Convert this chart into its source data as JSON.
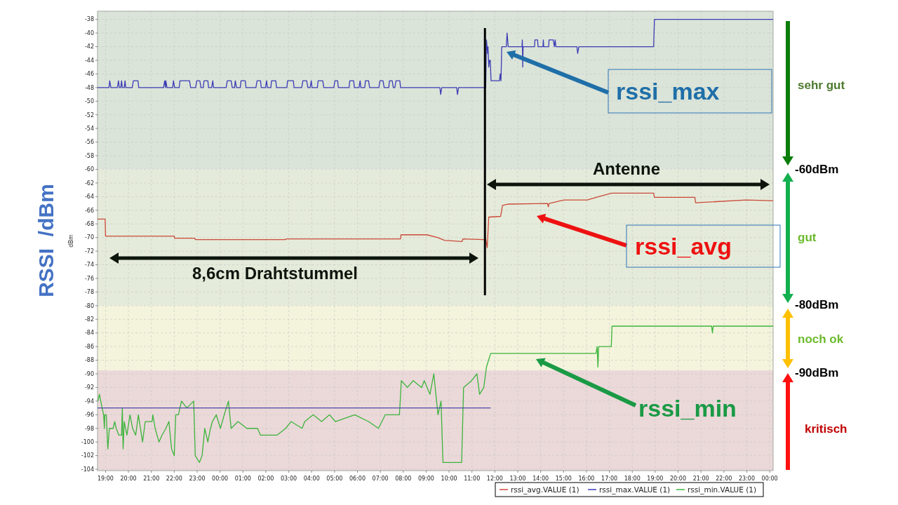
{
  "chart_data": {
    "type": "line",
    "ylabel": "dBm",
    "xlim": [
      "2000-01-01T18:39",
      "2000-01-03T00:09"
    ],
    "ylim": [
      -104.2,
      -36.8
    ],
    "xticks": [
      {
        "value": "2000-01-01T19:00",
        "label": "19:00"
      },
      {
        "value": "2000-01-01T20:00",
        "label": "20:00"
      },
      {
        "value": "2000-01-01T21:00",
        "label": "21:00"
      },
      {
        "value": "2000-01-01T22:00",
        "label": "22:00"
      },
      {
        "value": "2000-01-01T23:00",
        "label": "23:00"
      },
      {
        "value": "2000-01-02T00:00",
        "label": "00:00"
      },
      {
        "value": "2000-01-02T01:00",
        "label": "01:00"
      },
      {
        "value": "2000-01-02T02:00",
        "label": "02:00"
      },
      {
        "value": "2000-01-02T03:00",
        "label": "03:00"
      },
      {
        "value": "2000-01-02T04:00",
        "label": "04:00"
      },
      {
        "value": "2000-01-02T05:00",
        "label": "05:00"
      },
      {
        "value": "2000-01-02T06:00",
        "label": "06:00"
      },
      {
        "value": "2000-01-02T07:00",
        "label": "07:00"
      },
      {
        "value": "2000-01-02T08:00",
        "label": "08:00"
      },
      {
        "value": "2000-01-02T09:00",
        "label": "09:00"
      },
      {
        "value": "2000-01-02T10:00",
        "label": "10:00"
      },
      {
        "value": "2000-01-02T11:00",
        "label": "11:00"
      },
      {
        "value": "2000-01-02T12:00",
        "label": "12:00"
      },
      {
        "value": "2000-01-02T13:00",
        "label": "13:00"
      },
      {
        "value": "2000-01-02T14:00",
        "label": "14:00"
      },
      {
        "value": "2000-01-02T15:00",
        "label": "15:00"
      },
      {
        "value": "2000-01-02T16:00",
        "label": "16:00"
      },
      {
        "value": "2000-01-02T17:00",
        "label": "17:00"
      },
      {
        "value": "2000-01-02T18:00",
        "label": "18:00"
      },
      {
        "value": "2000-01-02T19:00",
        "label": "19:00"
      },
      {
        "value": "2000-01-02T20:00",
        "label": "20:00"
      },
      {
        "value": "2000-01-02T21:00",
        "label": "21:00"
      },
      {
        "value": "2000-01-02T22:00",
        "label": "22:00"
      },
      {
        "value": "2000-01-02T23:00",
        "label": "23:00"
      },
      {
        "value": "2000-01-03T00:00",
        "label": "00:00"
      }
    ],
    "yticks": [
      -38,
      -40,
      -42,
      -44,
      -46,
      -48,
      -50,
      -52,
      -54,
      -56,
      -58,
      -60,
      -62,
      -64,
      -66,
      -68,
      -70,
      -72,
      -74,
      -76,
      -78,
      -80,
      -82,
      -84,
      -86,
      -88,
      -90,
      -92,
      -94,
      -96,
      -98,
      -100,
      -102,
      -104
    ],
    "grid": true,
    "legend": "bottom right",
    "bands": [
      {
        "axis": "y",
        "from": -60,
        "to": -36.8,
        "label": "sehr gut",
        "color": "#dbe4d9"
      },
      {
        "axis": "y",
        "from": -80,
        "to": -60,
        "label": "gut",
        "color": "#e5ebda"
      },
      {
        "axis": "y",
        "from": -89.5,
        "to": -80,
        "label": "noch ok",
        "color": "#f4f4dc"
      },
      {
        "axis": "y",
        "from": -104.2,
        "to": -89.5,
        "label": "kritisch",
        "color": "#ebd8d9"
      }
    ],
    "ref_lines": [
      {
        "axis": "x",
        "value": "2000-01-02T11:34",
        "color": "#000000"
      }
    ],
    "annotations": [
      "RSSI  /dBm",
      "8,6cm Drahtstummel",
      "Antenne",
      "rssi_max",
      "rssi_avg",
      "rssi_min",
      "-60dBm",
      "-80dBm",
      "-90dBm"
    ],
    "series": [
      {
        "name": "rssi_avg.VALUE (1)",
        "color": "#cc4a3a",
        "x": [
          "2000-01-01T18:39",
          "2000-01-01T18:59",
          "2000-01-01T19:00",
          "2000-01-01T22:00",
          "2000-01-01T22:01",
          "2000-01-01T22:54",
          "2000-01-01T22:55",
          "2000-01-02T02:52",
          "2000-01-02T02:53",
          "2000-01-02T07:53",
          "2000-01-02T07:54",
          "2000-01-02T09:02",
          "2000-01-02T09:30",
          "2000-01-02T09:48",
          "2000-01-02T10:34",
          "2000-01-02T10:36",
          "2000-01-02T11:31",
          "2000-01-02T11:36",
          "2000-01-02T11:40",
          "2000-01-02T11:44",
          "2000-01-02T12:15",
          "2000-01-02T12:20",
          "2000-01-02T12:34",
          "2000-01-02T14:18",
          "2000-01-02T14:20",
          "2000-01-02T14:22",
          "2000-01-02T15:01",
          "2000-01-02T16:02",
          "2000-01-02T16:32",
          "2000-01-02T17:06",
          "2000-01-02T18:56",
          "2000-01-02T18:58",
          "2000-01-02T20:44",
          "2000-01-02T20:46",
          "2000-01-02T22:58",
          "2000-01-03T00:09"
        ],
        "values": [
          -67.3,
          -67.3,
          -69.8,
          -69.8,
          -70.1,
          -70.1,
          -70.3,
          -70.3,
          -70.2,
          -70.2,
          -69.6,
          -69.6,
          -70.0,
          -70.4,
          -70.6,
          -70.2,
          -70.3,
          -70.2,
          -71.5,
          -67.0,
          -66.9,
          -65.3,
          -65.1,
          -65.0,
          -65.5,
          -65.0,
          -64.5,
          -64.5,
          -64.0,
          -63.5,
          -63.5,
          -64.1,
          -64.1,
          -64.9,
          -64.5,
          -64.6
        ]
      },
      {
        "name": "rssi_max.VALUE (1)",
        "color": "#3c3cb4",
        "x": [
          "2000-01-01T18:39",
          "2000-01-01T19:09",
          "2000-01-01T19:11",
          "2000-01-01T19:14",
          "2000-01-01T19:31",
          "2000-01-01T19:34",
          "2000-01-01T19:36",
          "2000-01-01T19:40",
          "2000-01-01T19:42",
          "2000-01-01T19:44",
          "2000-01-01T19:49",
          "2000-01-01T19:51",
          "2000-01-01T19:53",
          "2000-01-01T20:10",
          "2000-01-01T20:13",
          "2000-01-01T20:25",
          "2000-01-01T20:27",
          "2000-01-01T21:32",
          "2000-01-01T21:35",
          "2000-01-01T21:37",
          "2000-01-01T21:38",
          "2000-01-01T21:41",
          "2000-01-01T21:56",
          "2000-01-01T21:58",
          "2000-01-01T22:01",
          "2000-01-01T22:13",
          "2000-01-01T22:15",
          "2000-01-01T22:40",
          "2000-01-01T22:43",
          "2000-01-01T22:56",
          "2000-01-01T22:59",
          "2000-01-01T23:07",
          "2000-01-01T23:10",
          "2000-01-01T23:16",
          "2000-01-01T23:18",
          "2000-01-01T23:28",
          "2000-01-01T23:30",
          "2000-01-01T23:38",
          "2000-01-01T23:41",
          "2000-01-01T23:43",
          "2000-01-02T00:16",
          "2000-01-02T00:19",
          "2000-01-02T00:29",
          "2000-01-02T00:32",
          "2000-01-02T00:38",
          "2000-01-02T00:40",
          "2000-01-02T00:43",
          "2000-01-02T00:53",
          "2000-01-02T00:55",
          "2000-01-02T01:06",
          "2000-01-02T01:08",
          "2000-01-02T01:34",
          "2000-01-02T01:37",
          "2000-01-02T01:46",
          "2000-01-02T01:48",
          "2000-01-02T01:59",
          "2000-01-02T02:02",
          "2000-01-02T02:04",
          "2000-01-02T02:13",
          "2000-01-02T02:15",
          "2000-01-02T02:26",
          "2000-01-02T02:28",
          "2000-01-02T02:55",
          "2000-01-02T02:57",
          "2000-01-02T03:12",
          "2000-01-02T03:14",
          "2000-01-02T03:34",
          "2000-01-02T03:37",
          "2000-01-02T03:47",
          "2000-01-02T03:50",
          "2000-01-02T03:56",
          "2000-01-02T03:59",
          "2000-01-02T04:01",
          "2000-01-02T04:15",
          "2000-01-02T04:17",
          "2000-01-02T04:29",
          "2000-01-02T04:32",
          "2000-01-02T04:58",
          "2000-01-02T05:01",
          "2000-01-02T05:08",
          "2000-01-02T05:10",
          "2000-01-02T05:38",
          "2000-01-02T05:40",
          "2000-01-02T05:50",
          "2000-01-02T05:52",
          "2000-01-02T06:04",
          "2000-01-02T06:07",
          "2000-01-02T06:09",
          "2000-01-02T06:19",
          "2000-01-02T06:21",
          "2000-01-02T06:29",
          "2000-01-02T06:32",
          "2000-01-02T06:56",
          "2000-01-02T06:59",
          "2000-01-02T07:07",
          "2000-01-02T07:10",
          "2000-01-02T07:22",
          "2000-01-02T07:24",
          "2000-01-02T07:31",
          "2000-01-02T07:34",
          "2000-01-02T07:38",
          "2000-01-02T07:41",
          "2000-01-02T07:51",
          "2000-01-02T07:53",
          "2000-01-02T09:36",
          "2000-01-02T09:38",
          "2000-01-02T09:41",
          "2000-01-02T10:20",
          "2000-01-02T10:22",
          "2000-01-02T10:25",
          "2000-01-02T11:36",
          "2000-01-02T11:38",
          "2000-01-02T11:41",
          "2000-01-02T11:42",
          "2000-01-02T11:44",
          "2000-01-02T11:46",
          "2000-01-02T11:48",
          "2000-01-02T11:50",
          "2000-01-02T12:12",
          "2000-01-02T12:14",
          "2000-01-02T12:16",
          "2000-01-02T12:18",
          "2000-01-02T12:30",
          "2000-01-02T12:32",
          "2000-01-02T12:35",
          "2000-01-02T13:11",
          "2000-01-02T13:12",
          "2000-01-02T13:13",
          "2000-01-02T13:14",
          "2000-01-02T13:44",
          "2000-01-02T13:45",
          "2000-01-02T13:52",
          "2000-01-02T13:53",
          "2000-01-02T14:06",
          "2000-01-02T14:07",
          "2000-01-02T14:08",
          "2000-01-02T14:21",
          "2000-01-02T14:22",
          "2000-01-02T14:33",
          "2000-01-02T14:36",
          "2000-01-02T14:38",
          "2000-01-02T14:40",
          "2000-01-02T15:35",
          "2000-01-02T15:37",
          "2000-01-02T15:40",
          "2000-01-02T18:56",
          "2000-01-02T18:58",
          "2000-01-03T00:09"
        ],
        "values": [
          -48,
          -48,
          -47,
          -48,
          -48,
          -47,
          -48,
          -48,
          -47,
          -48,
          -48,
          -47,
          -48,
          -48,
          -47,
          -47,
          -48,
          -48,
          -47,
          -48,
          -47,
          -48,
          -48,
          -47,
          -48,
          -48,
          -47,
          -47,
          -48,
          -48,
          -47,
          -47,
          -48,
          -48,
          -47,
          -47,
          -48,
          -48,
          -47,
          -48,
          -48,
          -47,
          -47,
          -48,
          -48,
          -47,
          -48,
          -48,
          -47,
          -47,
          -48,
          -48,
          -47,
          -47,
          -48,
          -48,
          -47,
          -48,
          -48,
          -47,
          -47,
          -48,
          -48,
          -47,
          -47,
          -48,
          -48,
          -47,
          -47,
          -48,
          -48,
          -47,
          -48,
          -48,
          -47,
          -47,
          -48,
          -48,
          -47,
          -47,
          -48,
          -48,
          -47,
          -47,
          -48,
          -48,
          -47,
          -48,
          -48,
          -47,
          -47,
          -48,
          -48,
          -47,
          -47,
          -48,
          -48,
          -47,
          -47,
          -48,
          -48,
          -47,
          -47,
          -48,
          -48,
          -49,
          -48,
          -48,
          -49,
          -48,
          -48,
          -41,
          -43,
          -42,
          -45,
          -44,
          -44,
          -47,
          -47,
          -46,
          -47,
          -42,
          -42,
          -40,
          -42,
          -42,
          -41,
          -45,
          -42,
          -42,
          -41,
          -41,
          -42,
          -42,
          -41,
          -42,
          -42,
          -41,
          -41,
          -42,
          -41,
          -42,
          -42,
          -43,
          -42,
          -42,
          -38,
          -38
        ]
      },
      {
        "name": "rssi_min.VALUE (1)",
        "color": "#3cb43c",
        "x": [
          "2000-01-01T18:40",
          "2000-01-01T18:44",
          "2000-01-01T18:51",
          "2000-01-01T18:55",
          "2000-01-01T18:57",
          "2000-01-01T18:58",
          "2000-01-01T19:02",
          "2000-01-01T19:06",
          "2000-01-01T19:10",
          "2000-01-01T19:20",
          "2000-01-01T19:24",
          "2000-01-01T19:28",
          "2000-01-01T19:35",
          "2000-01-01T19:42",
          "2000-01-01T19:44",
          "2000-01-01T19:46",
          "2000-01-01T19:49",
          "2000-01-01T19:56",
          "2000-01-01T20:04",
          "2000-01-01T20:11",
          "2000-01-01T20:19",
          "2000-01-01T20:26",
          "2000-01-01T20:37",
          "2000-01-01T20:44",
          "2000-01-01T21:02",
          "2000-01-01T21:04",
          "2000-01-01T21:10",
          "2000-01-01T21:20",
          "2000-01-01T21:28",
          "2000-01-01T21:38",
          "2000-01-01T21:46",
          "2000-01-01T21:53",
          "2000-01-01T22:00",
          "2000-01-01T22:04",
          "2000-01-01T22:11",
          "2000-01-01T22:19",
          "2000-01-01T22:33",
          "2000-01-01T22:51",
          "2000-01-01T22:55",
          "2000-01-01T23:06",
          "2000-01-01T23:13",
          "2000-01-01T23:20",
          "2000-01-01T23:28",
          "2000-01-01T23:35",
          "2000-01-01T23:40",
          "2000-01-01T23:50",
          "2000-01-02T00:01",
          "2000-01-02T00:11",
          "2000-01-02T00:22",
          "2000-01-02T00:29",
          "2000-01-02T00:47",
          "2000-01-02T01:10",
          "2000-01-02T01:38",
          "2000-01-02T01:46",
          "2000-01-02T02:08",
          "2000-01-02T02:29",
          "2000-01-02T02:52",
          "2000-01-02T03:06",
          "2000-01-02T03:35",
          "2000-01-02T03:42",
          "2000-01-02T04:04",
          "2000-01-02T04:26",
          "2000-01-02T04:47",
          "2000-01-02T05:02",
          "2000-01-02T05:53",
          "2000-01-02T06:29",
          "2000-01-02T06:55",
          "2000-01-02T07:13",
          "2000-01-02T07:50",
          "2000-01-02T07:55",
          "2000-01-02T08:11",
          "2000-01-02T08:26",
          "2000-01-02T08:48",
          "2000-01-02T08:55",
          "2000-01-02T09:10",
          "2000-01-02T09:20",
          "2000-01-02T09:31",
          "2000-01-02T09:39",
          "2000-01-02T09:44",
          "2000-01-02T10:33",
          "2000-01-02T10:38",
          "2000-01-02T10:59",
          "2000-01-02T11:13",
          "2000-01-02T11:20",
          "2000-01-02T11:31",
          "2000-01-02T11:38",
          "2000-01-02T11:49",
          "2000-01-02T16:25",
          "2000-01-02T16:28",
          "2000-01-02T16:30",
          "2000-01-02T16:32",
          "2000-01-02T17:05",
          "2000-01-02T17:07",
          "2000-01-02T21:28",
          "2000-01-02T21:30",
          "2000-01-02T21:32",
          "2000-01-03T00:09"
        ],
        "values": [
          -94,
          -93,
          -95,
          -96,
          -98,
          -96,
          -96,
          -101,
          -98,
          -98,
          -97,
          -98,
          -99,
          -99,
          -95,
          -101,
          -97,
          -99,
          -96,
          -98,
          -99,
          -96,
          -100,
          -97,
          -97,
          -96,
          -98,
          -100,
          -99,
          -98,
          -97,
          -101,
          -102,
          -96,
          -96,
          -94,
          -95,
          -94,
          -102,
          -103,
          -102,
          -98,
          -100,
          -98,
          -97,
          -96,
          -98,
          -96,
          -94,
          -98,
          -97,
          -98,
          -98,
          -99,
          -99,
          -99,
          -98,
          -97,
          -98,
          -97,
          -96,
          -97,
          -96,
          -97,
          -96,
          -97,
          -98,
          -96,
          -96,
          -91,
          -92,
          -91,
          -92,
          -91,
          -93,
          -90,
          -96,
          -94,
          -103,
          -103,
          -92,
          -91,
          -90,
          -93,
          -92,
          -89,
          -87,
          -87,
          -86,
          -89,
          -86,
          -86,
          -83,
          -83,
          -84,
          -83,
          -83
        ]
      },
      {
        "color": "#4a4aa8",
        "x": [
          "2000-01-01T18:39",
          "2000-01-02T11:49"
        ],
        "values": [
          -95,
          -95
        ]
      }
    ]
  }
}
